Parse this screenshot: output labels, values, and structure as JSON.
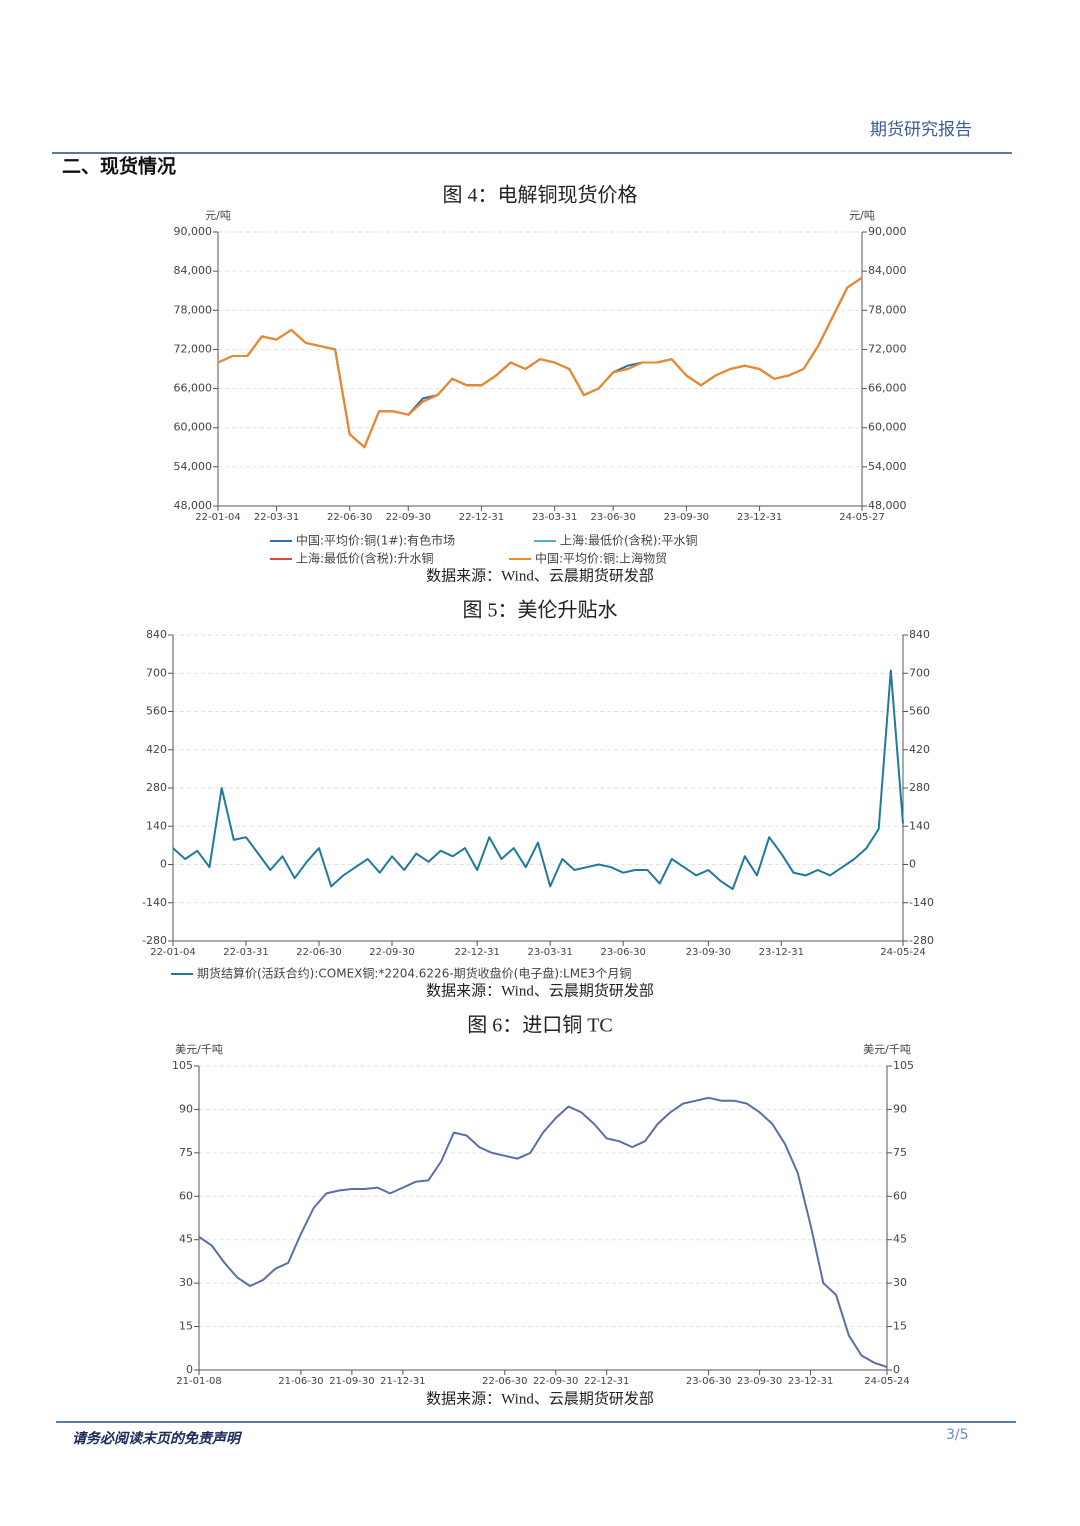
{
  "header": {
    "title": "期货研究报告"
  },
  "section": {
    "title": "二、现货情况"
  },
  "footer": {
    "disclaimer": "请务必阅读末页的免责声明",
    "page": "3/5"
  },
  "chart_data": [
    {
      "type": "line",
      "title": "图 4：电解铜现货价格",
      "source": "数据来源：Wind、云晨期货研发部",
      "y_unit": "元/吨",
      "y2_unit": "元/吨",
      "grid": true,
      "ylim": [
        48000,
        90000
      ],
      "yticks": [
        {
          "value": 48000,
          "label": "48,000"
        },
        {
          "value": 54000,
          "label": "54,000"
        },
        {
          "value": 60000,
          "label": "60,000"
        },
        {
          "value": 66000,
          "label": "66,000"
        },
        {
          "value": 72000,
          "label": "72,000"
        },
        {
          "value": 78000,
          "label": "78,000"
        },
        {
          "value": 84000,
          "label": "84,000"
        },
        {
          "value": 90000,
          "label": "90,000"
        }
      ],
      "categories": [
        "22-01-04",
        null,
        null,
        null,
        "22-03-31",
        null,
        null,
        null,
        null,
        "22-06-30",
        null,
        null,
        null,
        "22-09-30",
        null,
        null,
        null,
        null,
        "22-12-31",
        null,
        null,
        null,
        null,
        "23-03-31",
        null,
        null,
        null,
        "23-06-30",
        null,
        null,
        null,
        null,
        "23-09-30",
        null,
        null,
        null,
        null,
        "23-12-31",
        null,
        null,
        null,
        null,
        null,
        null,
        "24-05-27"
      ],
      "series": [
        {
          "name": "中国:平均价:铜(1#):有色市场",
          "color": "#2a6fb0",
          "values": [
            70000,
            71000,
            71000,
            74000,
            73500,
            75000,
            73000,
            72500,
            72000,
            59000,
            57000,
            62500,
            62500,
            62000,
            64500,
            65000,
            67500,
            66500,
            66500,
            68000,
            70000,
            69000,
            70500,
            70000,
            69000,
            65000,
            66000,
            68500,
            69500,
            70000,
            70000,
            70500,
            68000,
            66500,
            68000,
            69000,
            69500,
            69000,
            67500,
            68000,
            69000,
            72500,
            77000,
            81500,
            83000
          ]
        },
        {
          "name": "上海:最低价(含税):平水铜",
          "color": "#4fb3c8",
          "values": [
            70000,
            71000,
            71000,
            74000,
            73500,
            75000,
            73000,
            72500,
            72000,
            59000,
            57000,
            62500,
            62500,
            62000,
            64000,
            65000,
            67500,
            66500,
            66500,
            68000,
            70000,
            69000,
            70500,
            70000,
            69000,
            65000,
            66000,
            68500,
            69000,
            70000,
            70000,
            70500,
            68000,
            66500,
            68000,
            69000,
            69500,
            69000,
            67500,
            68000,
            69000,
            72500,
            77000,
            81500,
            83000
          ]
        },
        {
          "name": "上海:最低价(含税):升水铜",
          "color": "#e0463c",
          "values": [
            70000,
            71000,
            71000,
            74000,
            73500,
            75000,
            73000,
            72500,
            72000,
            59000,
            57000,
            62500,
            62500,
            62000,
            64000,
            65000,
            67500,
            66500,
            66500,
            68000,
            70000,
            69000,
            70500,
            70000,
            69000,
            65000,
            66000,
            68500,
            69000,
            70000,
            70000,
            70500,
            68000,
            66500,
            68000,
            69000,
            69500,
            69000,
            67500,
            68000,
            69000,
            72500,
            77000,
            81500,
            83000
          ]
        },
        {
          "name": "中国:平均价:铜:上海物贸",
          "color": "#ee8a26",
          "values": [
            70000,
            71000,
            71000,
            74000,
            73500,
            75000,
            73000,
            72500,
            72000,
            59000,
            57000,
            62500,
            62500,
            62000,
            64000,
            65000,
            67500,
            66500,
            66500,
            68000,
            70000,
            69000,
            70500,
            70000,
            69000,
            65000,
            66000,
            68500,
            69000,
            70000,
            70000,
            70500,
            68000,
            66500,
            68000,
            69000,
            69500,
            69000,
            67500,
            68000,
            69000,
            72500,
            77000,
            81500,
            83000
          ]
        }
      ]
    },
    {
      "type": "line",
      "title": "图 5：美伦升贴水",
      "source": "数据来源：Wind、云晨期货研发部",
      "grid": true,
      "ylim": [
        -280,
        840
      ],
      "yticks": [
        -280,
        -140,
        0,
        140,
        280,
        420,
        560,
        700,
        840
      ],
      "categories": [
        "22-01-04",
        null,
        null,
        null,
        null,
        null,
        "22-03-31",
        null,
        null,
        null,
        null,
        null,
        "22-06-30",
        null,
        null,
        null,
        null,
        null,
        "22-09-30",
        null,
        null,
        null,
        null,
        null,
        null,
        "22-12-31",
        null,
        null,
        null,
        null,
        null,
        "23-03-31",
        null,
        null,
        null,
        null,
        null,
        "23-06-30",
        null,
        null,
        null,
        null,
        null,
        null,
        "23-09-30",
        null,
        null,
        null,
        null,
        null,
        "23-12-31",
        null,
        null,
        null,
        null,
        null,
        null,
        null,
        null,
        null,
        "24-05-24"
      ],
      "series": [
        {
          "name": "期货结算价(活跃合约):COMEX铜:*2204.6226-期货收盘价(电子盘):LME3个月铜",
          "color": "#1f7a9e",
          "values": [
            60,
            20,
            50,
            -10,
            280,
            90,
            100,
            40,
            -20,
            30,
            -50,
            10,
            60,
            -80,
            -40,
            -10,
            20,
            -30,
            30,
            -20,
            40,
            10,
            50,
            30,
            60,
            -20,
            100,
            20,
            60,
            -10,
            80,
            -80,
            20,
            -20,
            -10,
            0,
            -10,
            -30,
            -20,
            -20,
            -70,
            20,
            -10,
            -40,
            -20,
            -60,
            -90,
            30,
            -40,
            100,
            40,
            -30,
            -40,
            -20,
            -40,
            -10,
            20,
            60,
            130,
            710,
            150
          ]
        }
      ]
    },
    {
      "type": "line",
      "title": "图 6：进口铜 TC",
      "source": "数据来源：Wind、云晨期货研发部",
      "y_unit": "美元/千吨",
      "y2_unit": "美元/千吨",
      "grid": true,
      "ylim": [
        0,
        105
      ],
      "yticks": [
        0,
        15,
        30,
        45,
        60,
        75,
        90,
        105
      ],
      "categories": [
        "21-01-08",
        null,
        null,
        null,
        null,
        null,
        null,
        null,
        "21-06-30",
        null,
        null,
        null,
        "21-09-30",
        null,
        null,
        null,
        "21-12-31",
        null,
        null,
        null,
        null,
        null,
        null,
        null,
        "22-06-30",
        null,
        null,
        null,
        "22-09-30",
        null,
        null,
        null,
        "22-12-31",
        null,
        null,
        null,
        null,
        null,
        null,
        null,
        "23-06-30",
        null,
        null,
        null,
        "23-09-30",
        null,
        null,
        null,
        "23-12-31",
        null,
        null,
        null,
        null,
        null,
        "24-05-24"
      ],
      "series": [
        {
          "name": null,
          "color": "#5b6fa6",
          "values": [
            46,
            43,
            37,
            32,
            29,
            31,
            35,
            37,
            47,
            56,
            61,
            62,
            62.5,
            62.5,
            63,
            61,
            63,
            65,
            65.5,
            72,
            82,
            81,
            77,
            75,
            74,
            73,
            75,
            82,
            87,
            91,
            89,
            85,
            80,
            79,
            77,
            79,
            85,
            89,
            92,
            93,
            94,
            93,
            93,
            92,
            89,
            85,
            78,
            68,
            50,
            30,
            26,
            12,
            5,
            2.5,
            1
          ]
        }
      ]
    }
  ]
}
